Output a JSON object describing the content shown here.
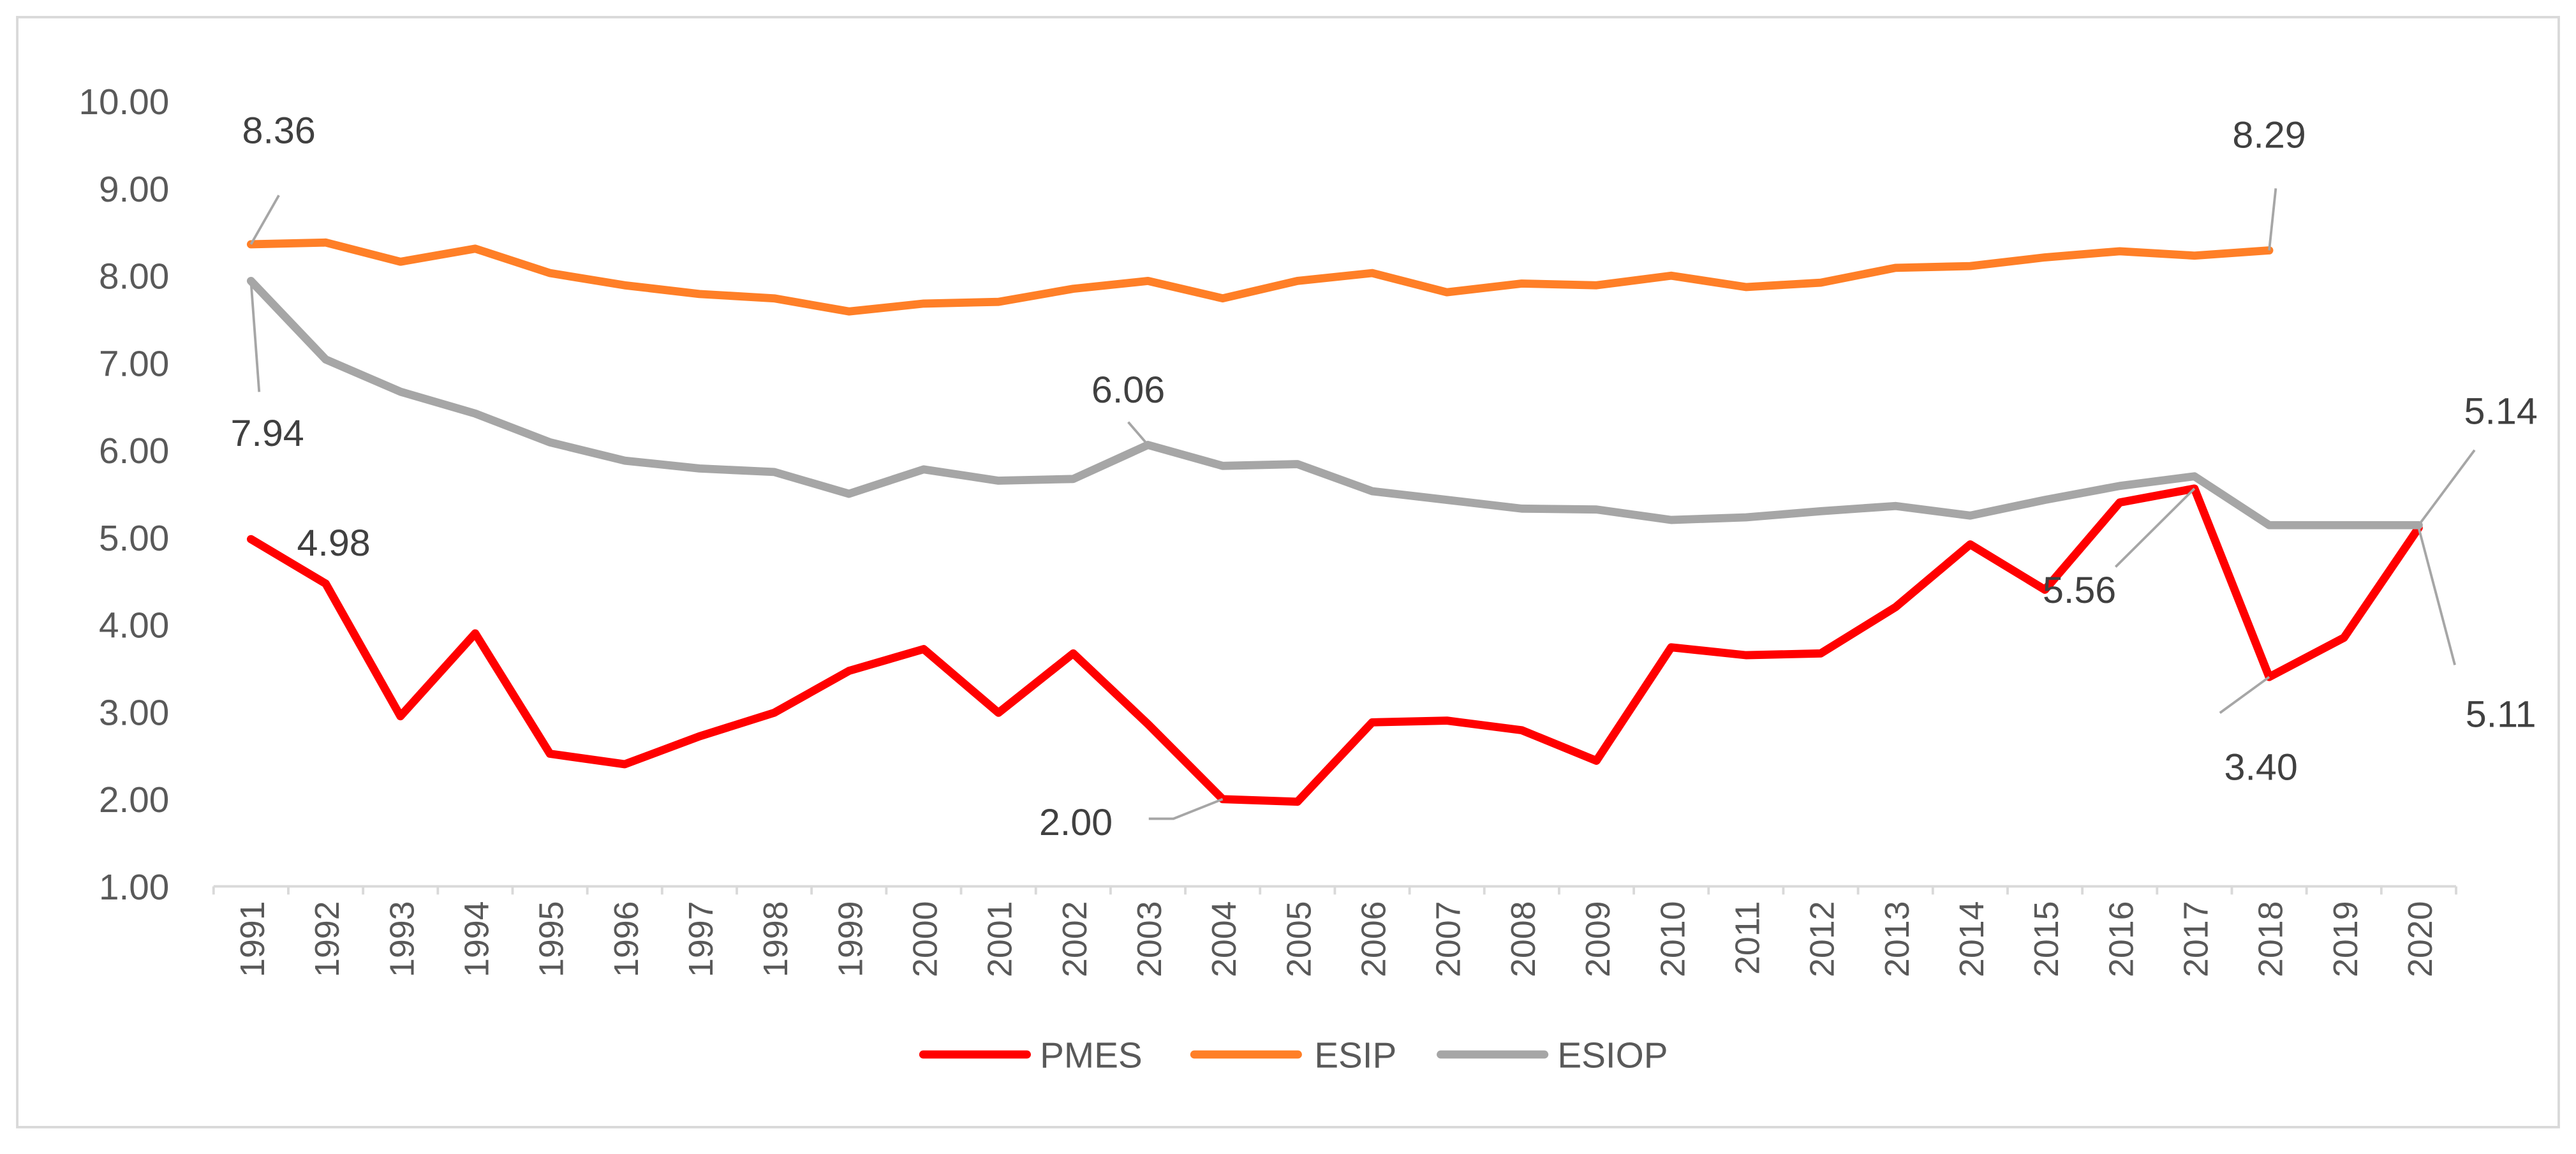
{
  "chart_data": {
    "type": "line",
    "title": "",
    "xlabel": "",
    "ylabel": "",
    "ylim": [
      1.0,
      10.0
    ],
    "ytick_step": 1.0,
    "y_decimals": 2,
    "grid": false,
    "legend_position": "bottom",
    "categories": [
      "1991",
      "1992",
      "1993",
      "1994",
      "1995",
      "1996",
      "1997",
      "1998",
      "1999",
      "2000",
      "2001",
      "2002",
      "2003",
      "2004",
      "2005",
      "2006",
      "2007",
      "2008",
      "2009",
      "2010",
      "2011",
      "2012",
      "2013",
      "2014",
      "2015",
      "2016",
      "2017",
      "2018",
      "2019",
      "2020"
    ],
    "series": [
      {
        "name": "PMES",
        "color": "#FF0000",
        "values": [
          4.98,
          4.47,
          2.95,
          3.9,
          2.52,
          2.4,
          2.72,
          2.99,
          3.47,
          3.72,
          2.99,
          3.67,
          2.86,
          2.0,
          1.97,
          2.88,
          2.9,
          2.79,
          2.44,
          3.74,
          3.65,
          3.67,
          4.2,
          4.92,
          4.4,
          5.4,
          5.56,
          3.4,
          3.85,
          5.11
        ]
      },
      {
        "name": "ESIP",
        "color": "#FF7F27",
        "values": [
          8.36,
          8.38,
          8.16,
          8.31,
          8.03,
          7.89,
          7.79,
          7.74,
          7.59,
          7.68,
          7.7,
          7.85,
          7.94,
          7.74,
          7.94,
          8.03,
          7.81,
          7.91,
          7.89,
          8.0,
          7.87,
          7.92,
          8.09,
          8.11,
          8.21,
          8.28,
          8.23,
          8.29,
          null,
          null
        ]
      },
      {
        "name": "ESIOP",
        "color": "#A6A6A6",
        "values": [
          7.94,
          7.04,
          6.67,
          6.42,
          6.09,
          5.88,
          5.79,
          5.75,
          5.5,
          5.78,
          5.65,
          5.67,
          6.06,
          5.82,
          5.84,
          5.53,
          5.43,
          5.33,
          5.32,
          5.2,
          5.23,
          5.3,
          5.36,
          5.25,
          5.43,
          5.59,
          5.7,
          5.14,
          5.14,
          5.14
        ]
      }
    ],
    "annotations": [
      {
        "series": "PMES",
        "category": "1991",
        "text": "4.98"
      },
      {
        "series": "ESIP",
        "category": "1991",
        "text": "8.36"
      },
      {
        "series": "ESIOP",
        "category": "1991",
        "text": "7.94"
      },
      {
        "series": "ESIOP",
        "category": "2003",
        "text": "6.06"
      },
      {
        "series": "PMES",
        "category": "2004",
        "text": "2.00"
      },
      {
        "series": "PMES",
        "category": "2017",
        "text": "5.56"
      },
      {
        "series": "ESIP",
        "category": "2018",
        "text": "8.29"
      },
      {
        "series": "PMES",
        "category": "2018",
        "text": "3.40"
      },
      {
        "series": "ESIOP",
        "category": "2020",
        "text": "5.14"
      },
      {
        "series": "PMES",
        "category": "2020",
        "text": "5.11"
      }
    ]
  }
}
